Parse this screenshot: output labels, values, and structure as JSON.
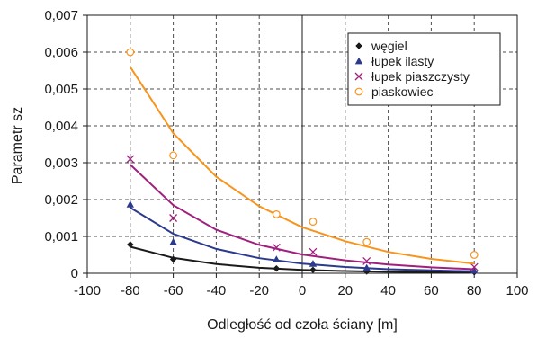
{
  "chart_data": {
    "type": "scatter",
    "xlabel": "Odległość od czoła ściany [m]",
    "ylabel": "Parametr sz",
    "xlim": [
      -100,
      100
    ],
    "ylim": [
      0,
      0.007
    ],
    "x_ticks": [
      -100,
      -80,
      -60,
      -40,
      -20,
      0,
      20,
      40,
      60,
      80,
      100
    ],
    "y_ticks": [
      0,
      0.001,
      0.002,
      0.003,
      0.004,
      0.005,
      0.006,
      0.007
    ],
    "x_tick_labels": [
      "-100",
      "-80",
      "-60",
      "-40",
      "-20",
      "0",
      "20",
      "40",
      "60",
      "80",
      "100"
    ],
    "y_tick_labels": [
      "0",
      "0,001",
      "0,002",
      "0,003",
      "0,004",
      "0,005",
      "0,006",
      "0,007"
    ],
    "grid": true,
    "legend_position": "top-right",
    "series": [
      {
        "name": "węgiel",
        "color": "#1a1a1a",
        "marker": "diamond",
        "points": [
          [
            -80,
            0.00078
          ],
          [
            -60,
            0.00038
          ],
          [
            -12,
            0.00013
          ],
          [
            5,
            9e-05
          ],
          [
            30,
            5e-05
          ],
          [
            80,
            3e-05
          ]
        ],
        "fit": [
          [
            -80,
            0.00072
          ],
          [
            -60,
            0.00042
          ],
          [
            -40,
            0.00025
          ],
          [
            -20,
            0.00015
          ],
          [
            0,
            9e-05
          ],
          [
            20,
            6e-05
          ],
          [
            40,
            4e-05
          ],
          [
            60,
            3e-05
          ],
          [
            80,
            2e-05
          ]
        ]
      },
      {
        "name": "łupek ilasty",
        "color": "#2b3a8f",
        "marker": "triangle",
        "points": [
          [
            -80,
            0.00187
          ],
          [
            -60,
            0.00085
          ],
          [
            -12,
            0.00038
          ],
          [
            5,
            0.00026
          ],
          [
            30,
            0.00015
          ],
          [
            80,
            7e-05
          ]
        ],
        "fit": [
          [
            -80,
            0.00178
          ],
          [
            -60,
            0.00107
          ],
          [
            -40,
            0.00066
          ],
          [
            -20,
            0.00041
          ],
          [
            0,
            0.00026
          ],
          [
            20,
            0.00017
          ],
          [
            40,
            0.00011
          ],
          [
            60,
            8e-05
          ],
          [
            80,
            5e-05
          ]
        ]
      },
      {
        "name": "łupek piaszczysty",
        "color": "#a0207e",
        "marker": "x",
        "points": [
          [
            -80,
            0.0031
          ],
          [
            -60,
            0.0015
          ],
          [
            -12,
            0.0007
          ],
          [
            5,
            0.00058
          ],
          [
            30,
            0.00033
          ],
          [
            80,
            0.00017
          ]
        ],
        "fit": [
          [
            -80,
            0.00295
          ],
          [
            -60,
            0.00185
          ],
          [
            -40,
            0.00118
          ],
          [
            -20,
            0.00077
          ],
          [
            0,
            0.00051
          ],
          [
            20,
            0.00035
          ],
          [
            40,
            0.00024
          ],
          [
            60,
            0.00016
          ],
          [
            80,
            0.00011
          ]
        ]
      },
      {
        "name": "piaskowiec",
        "color": "#f7941d",
        "marker": "circle",
        "points": [
          [
            -80,
            0.006
          ],
          [
            -60,
            0.0032
          ],
          [
            -12,
            0.0016
          ],
          [
            5,
            0.0014
          ],
          [
            30,
            0.00085
          ],
          [
            80,
            0.0005
          ]
        ],
        "fit": [
          [
            -80,
            0.0056
          ],
          [
            -60,
            0.0038
          ],
          [
            -40,
            0.00262
          ],
          [
            -20,
            0.00182
          ],
          [
            0,
            0.00125
          ],
          [
            20,
            0.00087
          ],
          [
            40,
            0.00058
          ],
          [
            60,
            0.00039
          ],
          [
            80,
            0.00026
          ]
        ]
      }
    ]
  }
}
